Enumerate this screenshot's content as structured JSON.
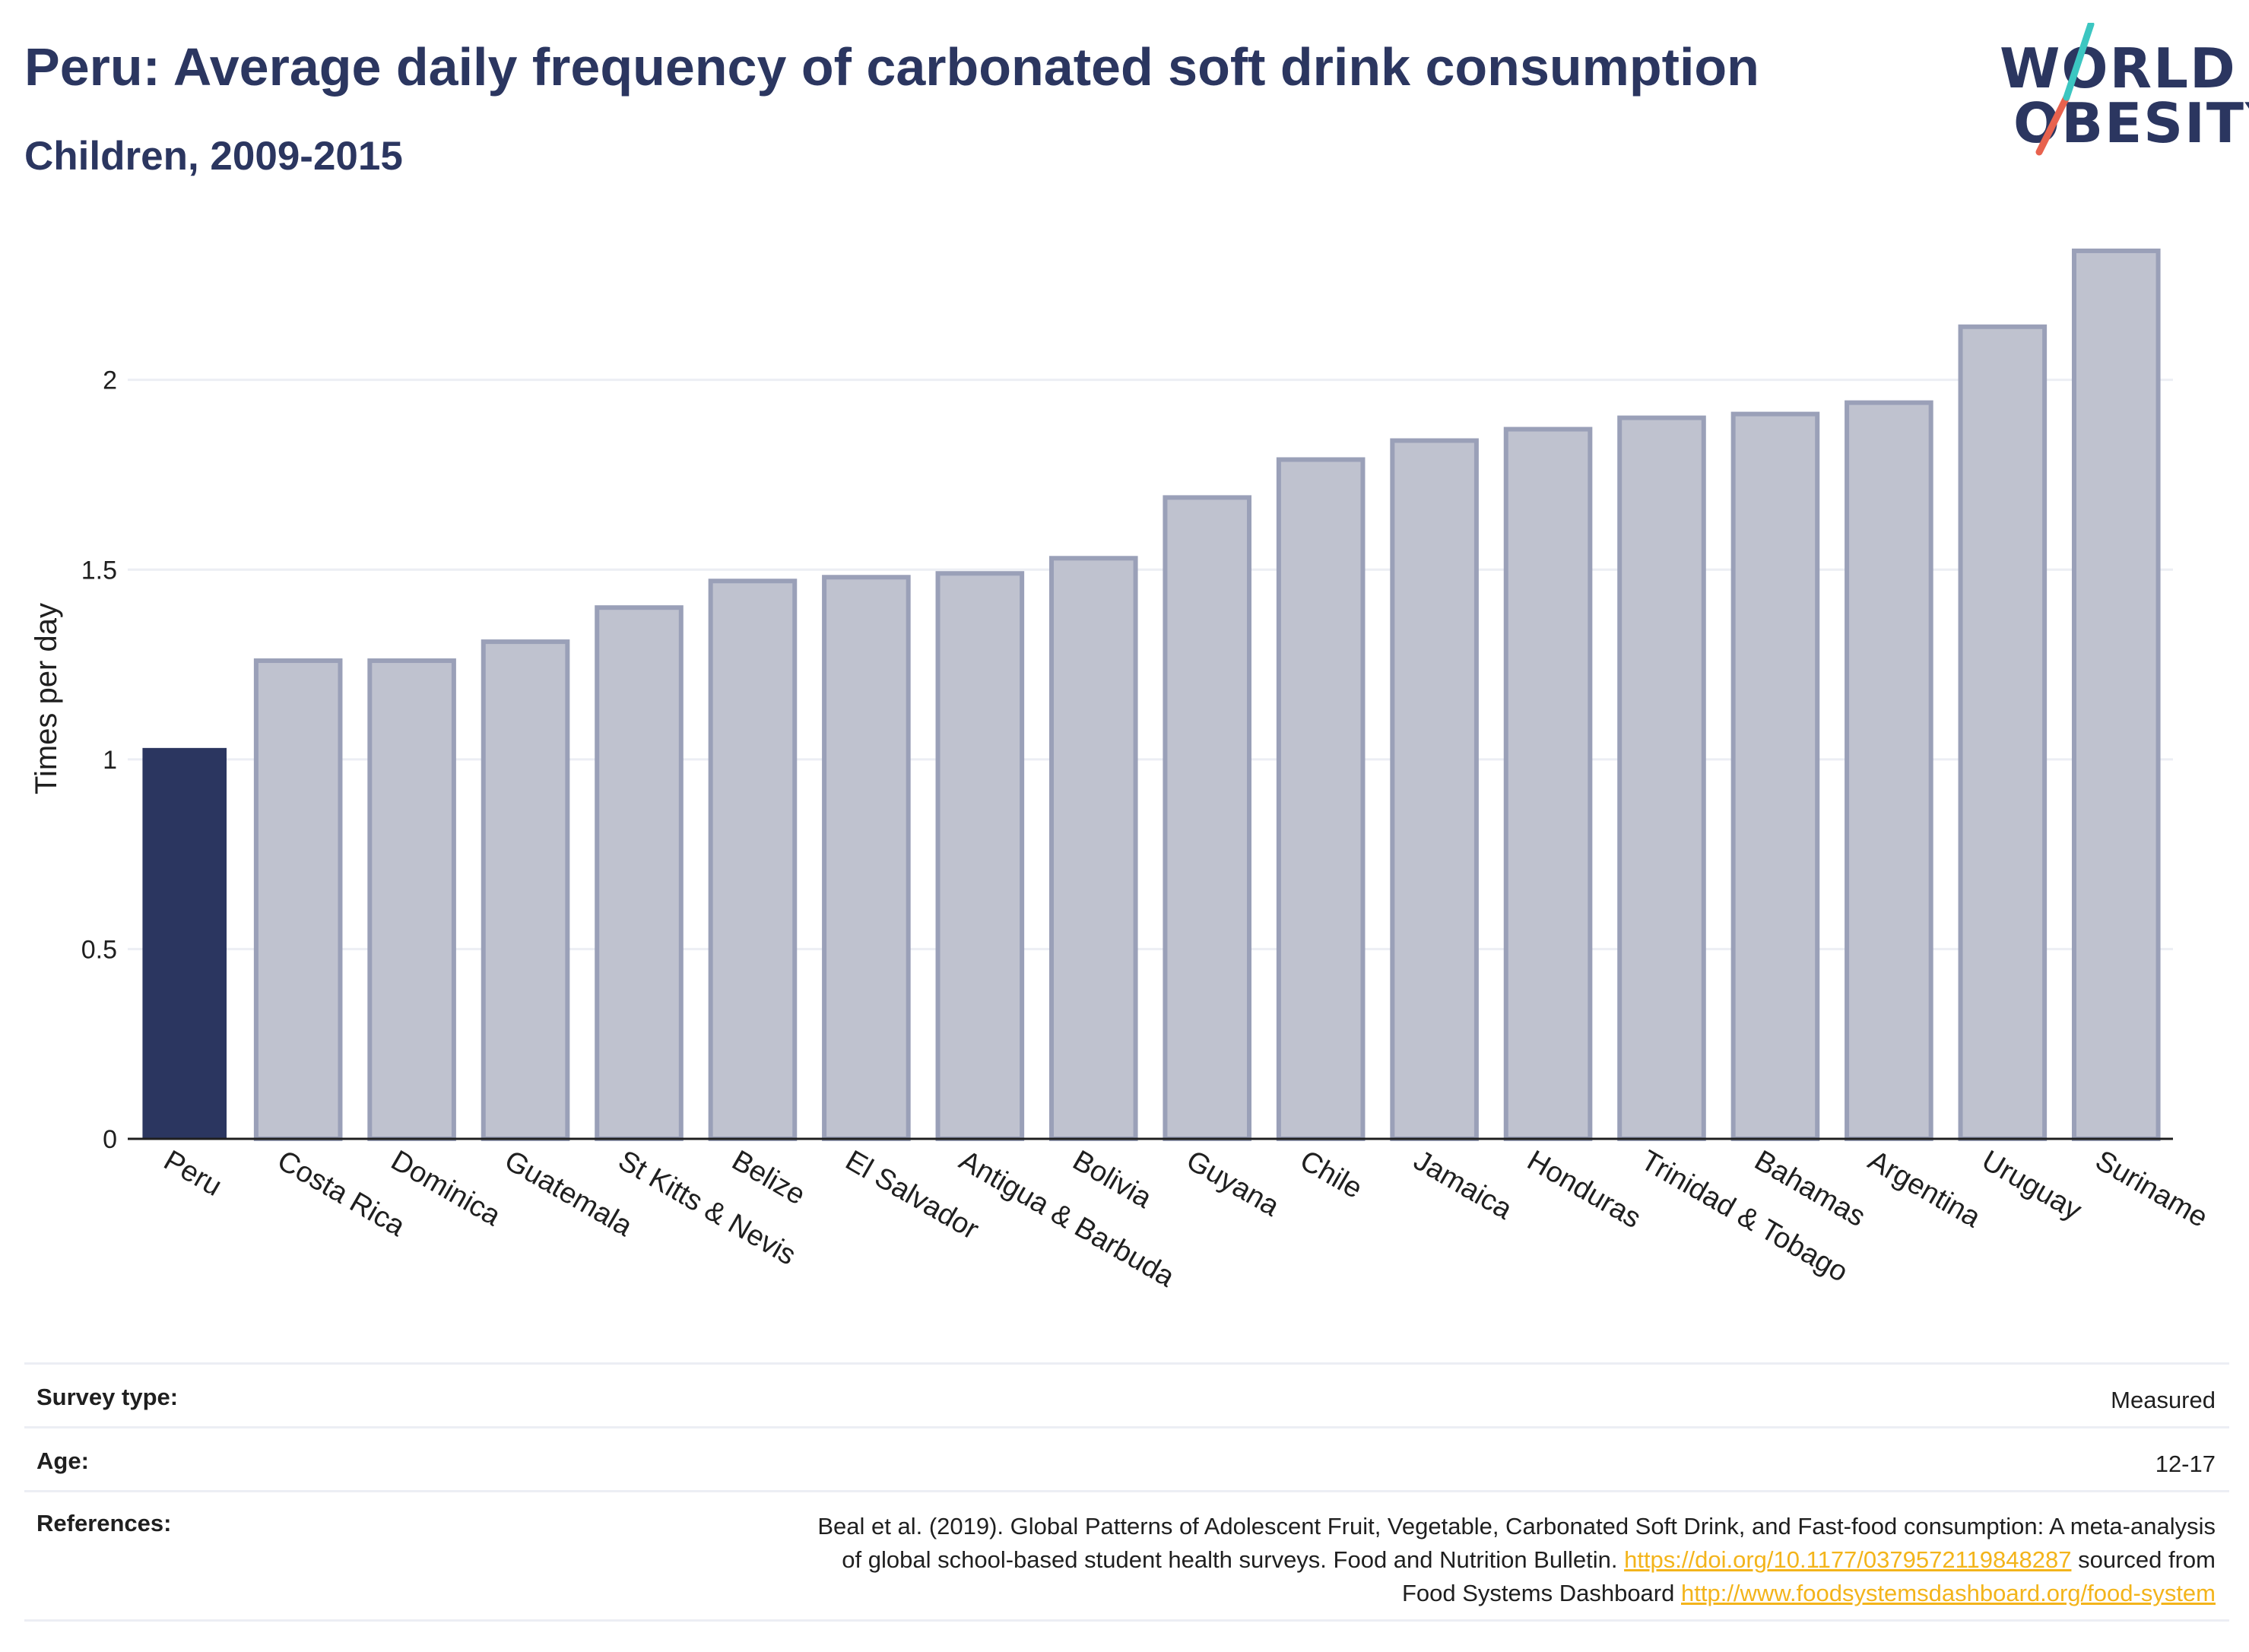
{
  "header": {
    "title": "Peru: Average daily frequency of carbonated soft drink consumption",
    "subtitle": "Children, 2009-2015"
  },
  "logo": {
    "line1": "WORLD",
    "line2": "OBESITY",
    "text_color": "#2b3660",
    "slash_colors": [
      "#e8624e",
      "#3cc6c1"
    ]
  },
  "chart_data": {
    "type": "bar",
    "categories": [
      "Peru",
      "Costa Rica",
      "Dominica",
      "Guatemala",
      "St Kitts & Nevis",
      "Belize",
      "El Salvador",
      "Antigua & Barbuda",
      "Bolivia",
      "Guyana",
      "Chile",
      "Jamaica",
      "Honduras",
      "Trinidad & Tobago",
      "Bahamas",
      "Argentina",
      "Uruguay",
      "Suriname"
    ],
    "values": [
      1.03,
      1.26,
      1.26,
      1.31,
      1.4,
      1.47,
      1.48,
      1.49,
      1.53,
      1.69,
      1.79,
      1.84,
      1.87,
      1.9,
      1.91,
      1.94,
      2.14,
      2.34
    ],
    "highlight": "Peru",
    "highlight_color": "#2b3660",
    "bar_color": "#bfc2cf",
    "bar_border_color": "#9aa0b8",
    "xlabel": "",
    "ylabel": "Times per day",
    "ylim": [
      0,
      2.4
    ],
    "yticks": [
      0,
      0.5,
      1,
      1.5,
      2
    ],
    "ytick_labels": [
      "0",
      "0.5",
      "1",
      "1.5",
      "2"
    ],
    "grid": true,
    "legend": "none"
  },
  "meta": {
    "survey_type_label": "Survey type:",
    "survey_type_value": "Measured",
    "age_label": "Age:",
    "age_value": "12-17",
    "references_label": "References:",
    "references_line1": "Beal et al. (2019). Global Patterns of Adolescent Fruit, Vegetable, Carbonated Soft Drink, and Fast-food consumption: A meta-analysis",
    "references_line2a": "of global school-based student health surveys. Food and Nutrition Bulletin.",
    "references_link1": "https://doi.org/10.1177/0379572119848287",
    "references_line2b": "sourced from",
    "references_line3a": "Food Systems Dashboard",
    "references_link2": "http://www.foodsystemsdashboard.org/food-system"
  }
}
